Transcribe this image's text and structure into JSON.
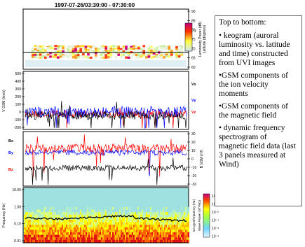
{
  "chart_data": {
    "type": "multi-panel",
    "title": "1997-07-26/03:30:00 - 07:30:00",
    "panels": [
      {
        "type": "heatmap",
        "name": "keogram",
        "ylabel": "Latitude (degrees)",
        "yticks": [
          "90",
          "85",
          "80",
          "75",
          "70",
          "65",
          "60"
        ],
        "ylim": [
          60,
          90
        ],
        "colorbar_label": "Luminosity Power (dB)",
        "colorbar_ticks": [
          "1"
        ]
      },
      {
        "type": "line",
        "name": "ion velocity",
        "ylabel": "V GSM (km/s)",
        "yticks": [
          "500",
          "400",
          "300",
          "200",
          "100",
          "0",
          "-100",
          "-200"
        ],
        "ylim": [
          -200,
          500
        ],
        "series": [
          {
            "name": "Vx",
            "color": "#000000"
          },
          {
            "name": "Vy",
            "color": "#0000ff"
          },
          {
            "name": "Vz",
            "color": "#ff0000"
          }
        ]
      },
      {
        "type": "line",
        "name": "magnetic field",
        "ylabel": "B GSM (nT)",
        "yticks": [
          "30",
          "20",
          "10",
          "0",
          "-10",
          "-20",
          "-30"
        ],
        "ylim": [
          -30,
          30
        ],
        "series": [
          {
            "name": "Bx",
            "color": "#000000"
          },
          {
            "name": "By",
            "color": "#0000ff"
          },
          {
            "name": "Bz",
            "color": "#ff0000"
          }
        ]
      },
      {
        "type": "heatmap",
        "name": "frequency spectrogram",
        "ylabel": "Frequency (Hz)",
        "yticks": [
          "10.00",
          "1.00",
          "0.10",
          "0.01"
        ],
        "ylim": [
          0.01,
          10
        ],
        "yscale": "log",
        "right_label": "Ion gyrofrequency (Hz)",
        "colorbar_label": "Wave Power (nT²/Hz)",
        "colorbar_ticks": [
          "10²",
          "10⁰",
          "10⁻²",
          "10⁻⁴",
          "10⁻⁶",
          "10⁻⁸"
        ]
      }
    ]
  },
  "caption": {
    "intro": "Top to bottom:",
    "items": [
      "• keogram (auroral luminosity vs. latitude and time) constructed from UVI images",
      "•GSM components of the ion velocity moments",
      "•GSM components of the magnetic field",
      "• dynamic frequency spectrogram of magnetic field data (last 3 panels measured at Wind)"
    ]
  },
  "colors": {
    "vx": "#000000",
    "vy": "#0000ff",
    "vz": "#ff0000",
    "spectrum_high": "#cc0000",
    "spectrum_mid": "#ffee00",
    "spectrum_low": "#9fe0e0"
  }
}
